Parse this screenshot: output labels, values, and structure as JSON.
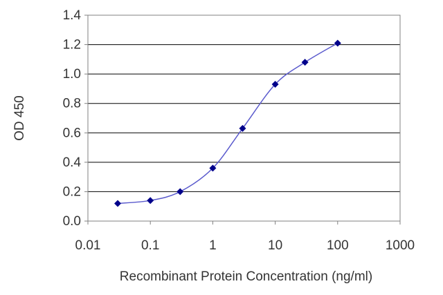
{
  "chart_data": {
    "type": "scatter",
    "title": "",
    "xlabel": "Recombinant Protein Concentration (ng/ml)",
    "ylabel": "OD 450",
    "xscale": "log",
    "xlim": [
      0.01,
      1000
    ],
    "ylim": [
      0,
      1.4
    ],
    "xticks": [
      "0.01",
      "0.1",
      "1",
      "10",
      "100",
      "1000"
    ],
    "yticks": [
      "0.0",
      "0.2",
      "0.4",
      "0.6",
      "0.8",
      "1.0",
      "1.2",
      "1.4"
    ],
    "grid": "horizontal",
    "legend": "none",
    "fit_curve": "sigmoidal",
    "series": [
      {
        "x": [
          0.03,
          0.1,
          0.3,
          1,
          3,
          10,
          30,
          100
        ],
        "y": [
          0.12,
          0.14,
          0.2,
          0.36,
          0.63,
          0.93,
          1.08,
          1.21
        ]
      }
    ],
    "colors": {
      "series": "#00008b",
      "curve": "#5a5acd",
      "grid": "#000000",
      "frame": "#808080",
      "text": "#333333"
    }
  }
}
